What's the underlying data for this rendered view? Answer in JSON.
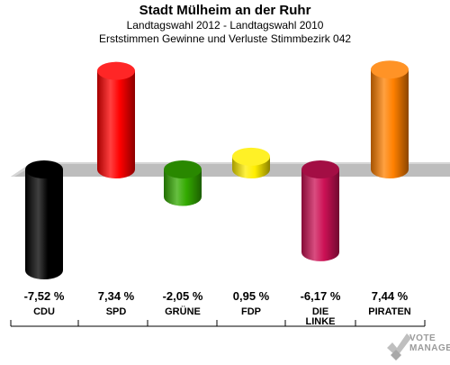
{
  "header": {
    "title": "Stadt Mülheim an der Ruhr",
    "subtitle1": "Landtagswahl 2012 - Landtagswahl 2010",
    "subtitle2": "Erststimmen Gewinne und Verluste Stimmbezirk 042"
  },
  "chart_data": {
    "type": "bar",
    "title": "Stadt Mülheim an der Ruhr",
    "subtitle": "Landtagswahl 2012 - Landtagswahl 2010 / Erststimmen Gewinne und Verluste Stimmbezirk 042",
    "categories": [
      "CDU",
      "SPD",
      "GRÜNE",
      "FDP",
      "DIE LINKE",
      "PIRATEN"
    ],
    "category_lines": [
      [
        "CDU"
      ],
      [
        "SPD"
      ],
      [
        "GRÜNE"
      ],
      [
        "FDP"
      ],
      [
        "DIE",
        "LINKE"
      ],
      [
        "PIRATEN"
      ]
    ],
    "values": [
      -7.52,
      7.34,
      -2.05,
      0.95,
      -6.17,
      7.44
    ],
    "value_labels": [
      "-7,52 %",
      "7,34 %",
      "-2,05 %",
      "0,95 %",
      "-6,17 %",
      "7,44 %"
    ],
    "colors": [
      "#000000",
      "#ff0000",
      "#33aa00",
      "#ffee00",
      "#cc1155",
      "#ff8000"
    ],
    "ylim": [
      -8,
      8
    ],
    "grid": false,
    "legend": "none"
  },
  "branding": {
    "logo_line1": "VOTE",
    "logo_line2": "MANAGER"
  }
}
